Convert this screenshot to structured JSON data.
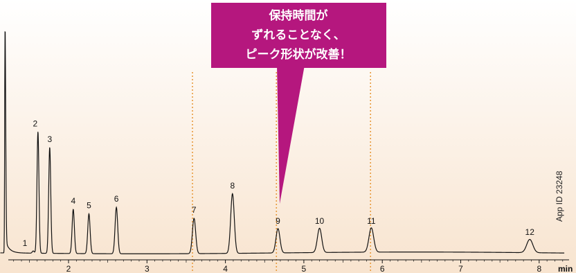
{
  "chart_data": {
    "type": "line",
    "title": "",
    "xlabel": "min",
    "ylabel": "",
    "xlim": [
      1.1,
      8.3
    ],
    "ylim": [
      0,
      100
    ],
    "x_ticks": [
      {
        "value": 2,
        "label": "2"
      },
      {
        "value": 3,
        "label": "3"
      },
      {
        "value": 4,
        "label": "4"
      },
      {
        "value": 5,
        "label": "5"
      },
      {
        "value": 6,
        "label": "6"
      },
      {
        "value": 7,
        "label": "7"
      },
      {
        "value": 8,
        "label": "8"
      }
    ],
    "series": [
      {
        "peaks": [
          {
            "label": "1",
            "time": 1.55,
            "height": 1
          },
          {
            "label": "2",
            "time": 1.61,
            "height": 55
          },
          {
            "label": "3",
            "time": 1.76,
            "height": 48
          },
          {
            "label": "4",
            "time": 2.06,
            "height": 20
          },
          {
            "label": "5",
            "time": 2.26,
            "height": 18
          },
          {
            "label": "6",
            "time": 2.61,
            "height": 21
          },
          {
            "label": "7",
            "time": 3.6,
            "height": 16
          },
          {
            "label": "8",
            "time": 4.09,
            "height": 27
          },
          {
            "label": "9",
            "time": 4.67,
            "height": 11
          },
          {
            "label": "10",
            "time": 5.2,
            "height": 11
          },
          {
            "label": "11",
            "time": 5.86,
            "height": 11
          },
          {
            "label": "12",
            "time": 7.88,
            "height": 6
          }
        ]
      }
    ],
    "solvent_peak": {
      "time": 1.19,
      "height": 100
    },
    "reference_lines": [
      3.58,
      4.65,
      5.85
    ],
    "callout": {
      "lines": [
        "保持時間が",
        "ずれることなく、",
        "ピーク形状が改善！"
      ]
    },
    "side_text": "App ID 23248",
    "colors": {
      "trace": "#111111",
      "reference_line": "#e89a3c",
      "callout_fill": "#b5177e",
      "callout_text": "#ffffff",
      "background_top": "#ffffff",
      "background_bottom": "#f8e4cf"
    },
    "grid": false
  }
}
